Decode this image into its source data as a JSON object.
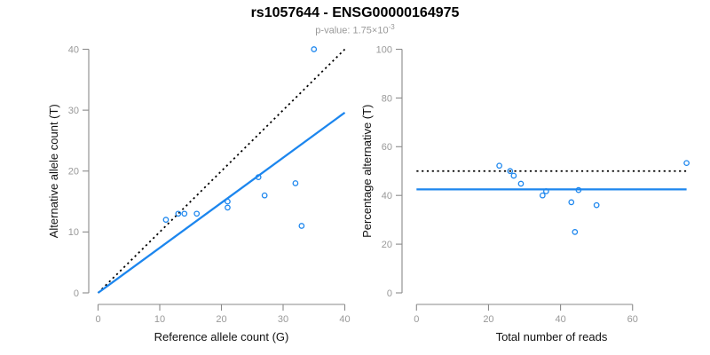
{
  "header": {
    "title": "rs1057644 - ENSG00000164975",
    "p_label": "p-value: 1.75×10",
    "p_exponent": "-3"
  },
  "colors": {
    "accent_blue": "#1C86EE",
    "line_black": "#000000",
    "axis_gray": "#8A8A8A",
    "tick_label_gray": "#999999",
    "axis_title_color": "#111111",
    "subtitle_gray": "#999999",
    "background": "#FFFFFF",
    "point_blue": "#1C86EE"
  },
  "chart_data": [
    {
      "type": "scatter",
      "name": "allele-counts",
      "xlabel": "Reference allele count (G)",
      "ylabel": "Alternative allele count (T)",
      "xlim": [
        0,
        40
      ],
      "ylim": [
        0,
        40
      ],
      "xticks": [
        0,
        10,
        20,
        30,
        40
      ],
      "yticks": [
        0,
        10,
        20,
        30,
        40
      ],
      "grid": false,
      "legend": "none",
      "points": [
        [
          11,
          12
        ],
        [
          13,
          13
        ],
        [
          14,
          13
        ],
        [
          16,
          13
        ],
        [
          21,
          14
        ],
        [
          21,
          15
        ],
        [
          26,
          19
        ],
        [
          27,
          16
        ],
        [
          32,
          18
        ],
        [
          33,
          11
        ],
        [
          35,
          40
        ]
      ],
      "lines": [
        {
          "name": "identity-line",
          "style": "dotted",
          "color": "#000000",
          "from": [
            0,
            0
          ],
          "to": [
            40,
            40
          ]
        },
        {
          "name": "regression-line",
          "style": "solid",
          "color": "#1C86EE",
          "from": [
            0,
            0
          ],
          "to": [
            40,
            29.6
          ]
        }
      ]
    },
    {
      "type": "scatter",
      "name": "percentage-vs-reads",
      "xlabel": "Total number of reads",
      "ylabel": "Percentage alternative (T)",
      "xlim": [
        0,
        75
      ],
      "ylim": [
        0,
        100
      ],
      "xticks": [
        0,
        20,
        40,
        60
      ],
      "yticks": [
        0,
        20,
        40,
        60,
        80,
        100
      ],
      "grid": false,
      "legend": "none",
      "points": [
        [
          23,
          52.2
        ],
        [
          26,
          50
        ],
        [
          27,
          48.1
        ],
        [
          29,
          44.8
        ],
        [
          35,
          40
        ],
        [
          36,
          41.7
        ],
        [
          43,
          37.2
        ],
        [
          44,
          25
        ],
        [
          45,
          42.2
        ],
        [
          50,
          36
        ],
        [
          75,
          53.3
        ]
      ],
      "lines": [
        {
          "name": "expected-50pct-line",
          "style": "dotted",
          "color": "#000000",
          "y": 50
        },
        {
          "name": "mean-percentage-line",
          "style": "solid",
          "color": "#1C86EE",
          "y": 42.5
        }
      ]
    }
  ]
}
